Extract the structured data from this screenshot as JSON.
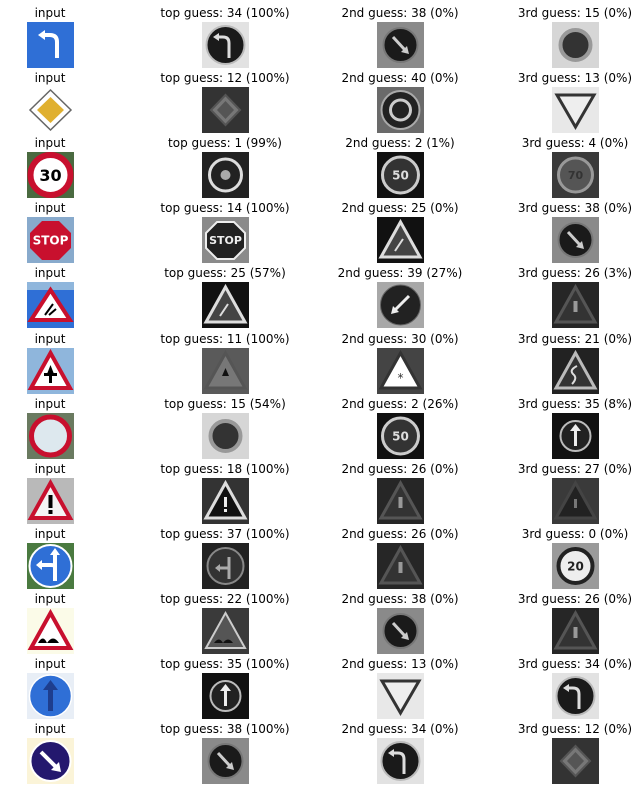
{
  "input_label": "input",
  "rows": [
    {
      "input": "turn-left-ahead-sign",
      "guesses": [
        {
          "caption": "top guess: 34 (100%)",
          "class_id": 34,
          "prob": 100,
          "thumb": "turn-left"
        },
        {
          "caption": "2nd guess: 38 (0%)",
          "class_id": 38,
          "prob": 0,
          "thumb": "keep-right"
        },
        {
          "caption": "3rd guess: 15 (0%)",
          "class_id": 15,
          "prob": 0,
          "thumb": "no-vehicles"
        }
      ]
    },
    {
      "input": "priority-road-sign",
      "guesses": [
        {
          "caption": "top guess: 12 (100%)",
          "class_id": 12,
          "prob": 100,
          "thumb": "priority"
        },
        {
          "caption": "2nd guess: 40 (0%)",
          "class_id": 40,
          "prob": 0,
          "thumb": "roundabout"
        },
        {
          "caption": "3rd guess: 13 (0%)",
          "class_id": 13,
          "prob": 0,
          "thumb": "yield"
        }
      ]
    },
    {
      "input": "speed-limit-30-sign",
      "guesses": [
        {
          "caption": "top guess: 1 (99%)",
          "class_id": 1,
          "prob": 99,
          "thumb": "speed30"
        },
        {
          "caption": "2nd guess: 2 (1%)",
          "class_id": 2,
          "prob": 1,
          "thumb": "speed50"
        },
        {
          "caption": "3rd guess: 4 (0%)",
          "class_id": 4,
          "prob": 0,
          "thumb": "speed70"
        }
      ]
    },
    {
      "input": "stop-sign",
      "guesses": [
        {
          "caption": "top guess: 14 (100%)",
          "class_id": 14,
          "prob": 100,
          "thumb": "stop"
        },
        {
          "caption": "2nd guess: 25 (0%)",
          "class_id": 25,
          "prob": 0,
          "thumb": "roadwork"
        },
        {
          "caption": "3rd guess: 38 (0%)",
          "class_id": 38,
          "prob": 0,
          "thumb": "keep-right"
        }
      ]
    },
    {
      "input": "road-work-sign",
      "guesses": [
        {
          "caption": "top guess: 25 (57%)",
          "class_id": 25,
          "prob": 57,
          "thumb": "roadwork"
        },
        {
          "caption": "2nd guess: 39 (27%)",
          "class_id": 39,
          "prob": 27,
          "thumb": "keep-left"
        },
        {
          "caption": "3rd guess: 26 (3%)",
          "class_id": 26,
          "prob": 3,
          "thumb": "signals"
        }
      ]
    },
    {
      "input": "right-of-way-sign",
      "guesses": [
        {
          "caption": "top guess: 11 (100%)",
          "class_id": 11,
          "prob": 100,
          "thumb": "right-of-way"
        },
        {
          "caption": "2nd guess: 30 (0%)",
          "class_id": 30,
          "prob": 0,
          "thumb": "ice"
        },
        {
          "caption": "3rd guess: 21 (0%)",
          "class_id": 21,
          "prob": 0,
          "thumb": "double-curve"
        }
      ]
    },
    {
      "input": "no-vehicles-sign",
      "guesses": [
        {
          "caption": "top guess: 15 (54%)",
          "class_id": 15,
          "prob": 54,
          "thumb": "no-vehicles"
        },
        {
          "caption": "2nd guess: 2 (26%)",
          "class_id": 2,
          "prob": 26,
          "thumb": "speed50"
        },
        {
          "caption": "3rd guess: 35 (8%)",
          "class_id": 35,
          "prob": 8,
          "thumb": "ahead-only"
        }
      ]
    },
    {
      "input": "general-caution-sign",
      "guesses": [
        {
          "caption": "top guess: 18 (100%)",
          "class_id": 18,
          "prob": 100,
          "thumb": "caution"
        },
        {
          "caption": "2nd guess: 26 (0%)",
          "class_id": 26,
          "prob": 0,
          "thumb": "signals"
        },
        {
          "caption": "3rd guess: 27 (0%)",
          "class_id": 27,
          "prob": 0,
          "thumb": "pedestrians"
        }
      ]
    },
    {
      "input": "straight-or-left-sign",
      "guesses": [
        {
          "caption": "top guess: 37 (100%)",
          "class_id": 37,
          "prob": 100,
          "thumb": "straight-left"
        },
        {
          "caption": "2nd guess: 26 (0%)",
          "class_id": 26,
          "prob": 0,
          "thumb": "signals"
        },
        {
          "caption": "3rd guess: 0 (0%)",
          "class_id": 0,
          "prob": 0,
          "thumb": "speed20"
        }
      ]
    },
    {
      "input": "bumpy-road-sign",
      "guesses": [
        {
          "caption": "top guess: 22 (100%)",
          "class_id": 22,
          "prob": 100,
          "thumb": "bumpy"
        },
        {
          "caption": "2nd guess: 38 (0%)",
          "class_id": 38,
          "prob": 0,
          "thumb": "keep-right"
        },
        {
          "caption": "3rd guess: 26 (0%)",
          "class_id": 26,
          "prob": 0,
          "thumb": "signals"
        }
      ]
    },
    {
      "input": "ahead-only-sign",
      "guesses": [
        {
          "caption": "top guess: 35 (100%)",
          "class_id": 35,
          "prob": 100,
          "thumb": "ahead-only"
        },
        {
          "caption": "2nd guess: 13 (0%)",
          "class_id": 13,
          "prob": 0,
          "thumb": "yield"
        },
        {
          "caption": "3rd guess: 34 (0%)",
          "class_id": 34,
          "prob": 0,
          "thumb": "turn-left"
        }
      ]
    },
    {
      "input": "keep-right-sign",
      "guesses": [
        {
          "caption": "top guess: 38 (100%)",
          "class_id": 38,
          "prob": 100,
          "thumb": "keep-right"
        },
        {
          "caption": "2nd guess: 34 (0%)",
          "class_id": 34,
          "prob": 0,
          "thumb": "turn-left"
        },
        {
          "caption": "3rd guess: 12 (0%)",
          "class_id": 12,
          "prob": 0,
          "thumb": "priority"
        }
      ]
    }
  ],
  "sign_text": {
    "speed30": "30",
    "speed50": "50",
    "speed70": "70",
    "speed20": "20",
    "stop": "STOP"
  },
  "colors": {
    "sign_red": "#c8102e",
    "sign_blue": "#2f6fd6",
    "sign_yellow": "#e0b030",
    "sign_navy": "#24186e",
    "sky": "#8fb6dc",
    "gray_bg": "#7a7a7a"
  }
}
